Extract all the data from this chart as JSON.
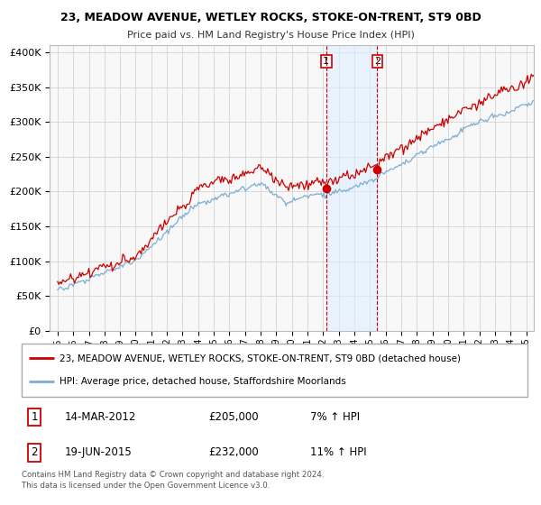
{
  "title": "23, MEADOW AVENUE, WETLEY ROCKS, STOKE-ON-TRENT, ST9 0BD",
  "subtitle": "Price paid vs. HM Land Registry's House Price Index (HPI)",
  "ylabel_ticks": [
    "£0",
    "£50K",
    "£100K",
    "£150K",
    "£200K",
    "£250K",
    "£300K",
    "£350K",
    "£400K"
  ],
  "ytick_values": [
    0,
    50000,
    100000,
    150000,
    200000,
    250000,
    300000,
    350000,
    400000
  ],
  "ylim": [
    0,
    410000
  ],
  "xlim_start": 1994.5,
  "xlim_end": 2025.5,
  "legend_line1": "23, MEADOW AVENUE, WETLEY ROCKS, STOKE-ON-TRENT, ST9 0BD (detached house)",
  "legend_line2": "HPI: Average price, detached house, Staffordshire Moorlands",
  "transaction1_label": "1",
  "transaction1_date": "14-MAR-2012",
  "transaction1_price": "£205,000",
  "transaction1_hpi": "7% ↑ HPI",
  "transaction2_label": "2",
  "transaction2_date": "19-JUN-2015",
  "transaction2_price": "£232,000",
  "transaction2_hpi": "11% ↑ HPI",
  "footer": "Contains HM Land Registry data © Crown copyright and database right 2024.\nThis data is licensed under the Open Government Licence v3.0.",
  "line_color_red": "#cc0000",
  "line_color_blue": "#7dadd4",
  "shade_color": "#ddeeff",
  "vline_color": "#cc0000",
  "marker1_x": 2012.2,
  "marker1_y": 205000,
  "marker2_x": 2015.47,
  "marker2_y": 232000,
  "vline1_x": 2012.2,
  "vline2_x": 2015.47,
  "bg_color": "#f8f8f8",
  "grid_color": "#cccccc"
}
